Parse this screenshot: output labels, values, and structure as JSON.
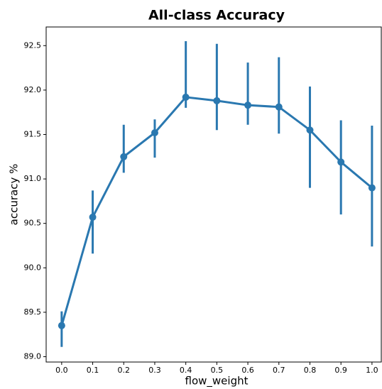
{
  "chart_data": {
    "type": "errorline",
    "title": "All-class Accuracy",
    "xlabel": "flow_weight",
    "ylabel": "accuracy %",
    "x": [
      0,
      0.1,
      0.2,
      0.3,
      0.4,
      0.5,
      0.6,
      0.7,
      0.8,
      0.9,
      1
    ],
    "series": [
      {
        "color": "#2a78b0",
        "values": [
          89.35,
          90.57,
          91.25,
          91.52,
          91.92,
          91.88,
          91.83,
          91.81,
          91.55,
          91.19,
          90.9
        ],
        "ci_low": [
          89.11,
          90.16,
          91.07,
          91.24,
          91.8,
          91.55,
          91.61,
          91.51,
          90.9,
          90.6,
          90.24
        ],
        "ci_high": [
          89.51,
          90.87,
          91.61,
          91.67,
          92.55,
          92.52,
          92.31,
          92.37,
          92.04,
          91.66,
          91.6
        ]
      }
    ],
    "xlim": [
      -0.05,
      1.03
    ],
    "xticks": [
      {
        "value": 0,
        "label": "0.0"
      },
      0.1,
      0.2,
      0.3,
      0.4,
      0.5,
      0.6,
      0.7,
      0.8,
      0.9,
      {
        "value": 1,
        "label": "1.0"
      }
    ],
    "ylim": [
      88.94,
      92.71
    ],
    "yticks": [
      {
        "value": 89,
        "label": "89.0"
      },
      89.5,
      {
        "value": 90,
        "label": "90.0"
      },
      90.5,
      {
        "value": 91,
        "label": "91.0"
      },
      91.5,
      {
        "value": 92,
        "label": "92.0"
      },
      92.5
    ]
  }
}
